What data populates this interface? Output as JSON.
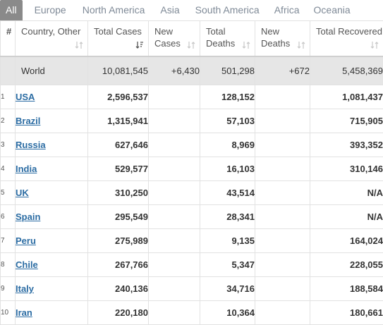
{
  "tabs": [
    {
      "label": "All",
      "active": true
    },
    {
      "label": "Europe",
      "active": false
    },
    {
      "label": "North America",
      "active": false
    },
    {
      "label": "Asia",
      "active": false
    },
    {
      "label": "South America",
      "active": false
    },
    {
      "label": "Africa",
      "active": false
    },
    {
      "label": "Oceania",
      "active": false
    }
  ],
  "headers": {
    "num": "#",
    "country": "Country, Other",
    "total_cases": "Total Cases",
    "new_cases": "New Cases",
    "total_deaths": "Total Deaths",
    "new_deaths": "New Deaths",
    "total_recovered": "Total Recovered"
  },
  "world": {
    "country": "World",
    "total_cases": "10,081,545",
    "new_cases": "+6,430",
    "total_deaths": "501,298",
    "new_deaths": "+672",
    "total_recovered": "5,458,369"
  },
  "rows": [
    {
      "num": "1",
      "country": "USA",
      "total_cases": "2,596,537",
      "new_cases": "",
      "total_deaths": "128,152",
      "new_deaths": "",
      "total_recovered": "1,081,437"
    },
    {
      "num": "2",
      "country": "Brazil",
      "total_cases": "1,315,941",
      "new_cases": "",
      "total_deaths": "57,103",
      "new_deaths": "",
      "total_recovered": "715,905"
    },
    {
      "num": "3",
      "country": "Russia",
      "total_cases": "627,646",
      "new_cases": "",
      "total_deaths": "8,969",
      "new_deaths": "",
      "total_recovered": "393,352"
    },
    {
      "num": "4",
      "country": "India",
      "total_cases": "529,577",
      "new_cases": "",
      "total_deaths": "16,103",
      "new_deaths": "",
      "total_recovered": "310,146"
    },
    {
      "num": "5",
      "country": "UK",
      "total_cases": "310,250",
      "new_cases": "",
      "total_deaths": "43,514",
      "new_deaths": "",
      "total_recovered": "N/A"
    },
    {
      "num": "6",
      "country": "Spain",
      "total_cases": "295,549",
      "new_cases": "",
      "total_deaths": "28,341",
      "new_deaths": "",
      "total_recovered": "N/A"
    },
    {
      "num": "7",
      "country": "Peru",
      "total_cases": "275,989",
      "new_cases": "",
      "total_deaths": "9,135",
      "new_deaths": "",
      "total_recovered": "164,024"
    },
    {
      "num": "8",
      "country": "Chile",
      "total_cases": "267,766",
      "new_cases": "",
      "total_deaths": "5,347",
      "new_deaths": "",
      "total_recovered": "228,055"
    },
    {
      "num": "9",
      "country": "Italy",
      "total_cases": "240,136",
      "new_cases": "",
      "total_deaths": "34,716",
      "new_deaths": "",
      "total_recovered": "188,584"
    },
    {
      "num": "10",
      "country": "Iran",
      "total_cases": "220,180",
      "new_cases": "",
      "total_deaths": "10,364",
      "new_deaths": "",
      "total_recovered": "180,661"
    }
  ],
  "colors": {
    "active_tab_bg": "#8a8a8a",
    "tab_text": "#7f8a97",
    "world_row_bg": "#e6e6e6",
    "link": "#2b6ca3"
  },
  "icons": {
    "sort": "sort-arrows-icon",
    "sort_active": "sort-desc-icon"
  }
}
